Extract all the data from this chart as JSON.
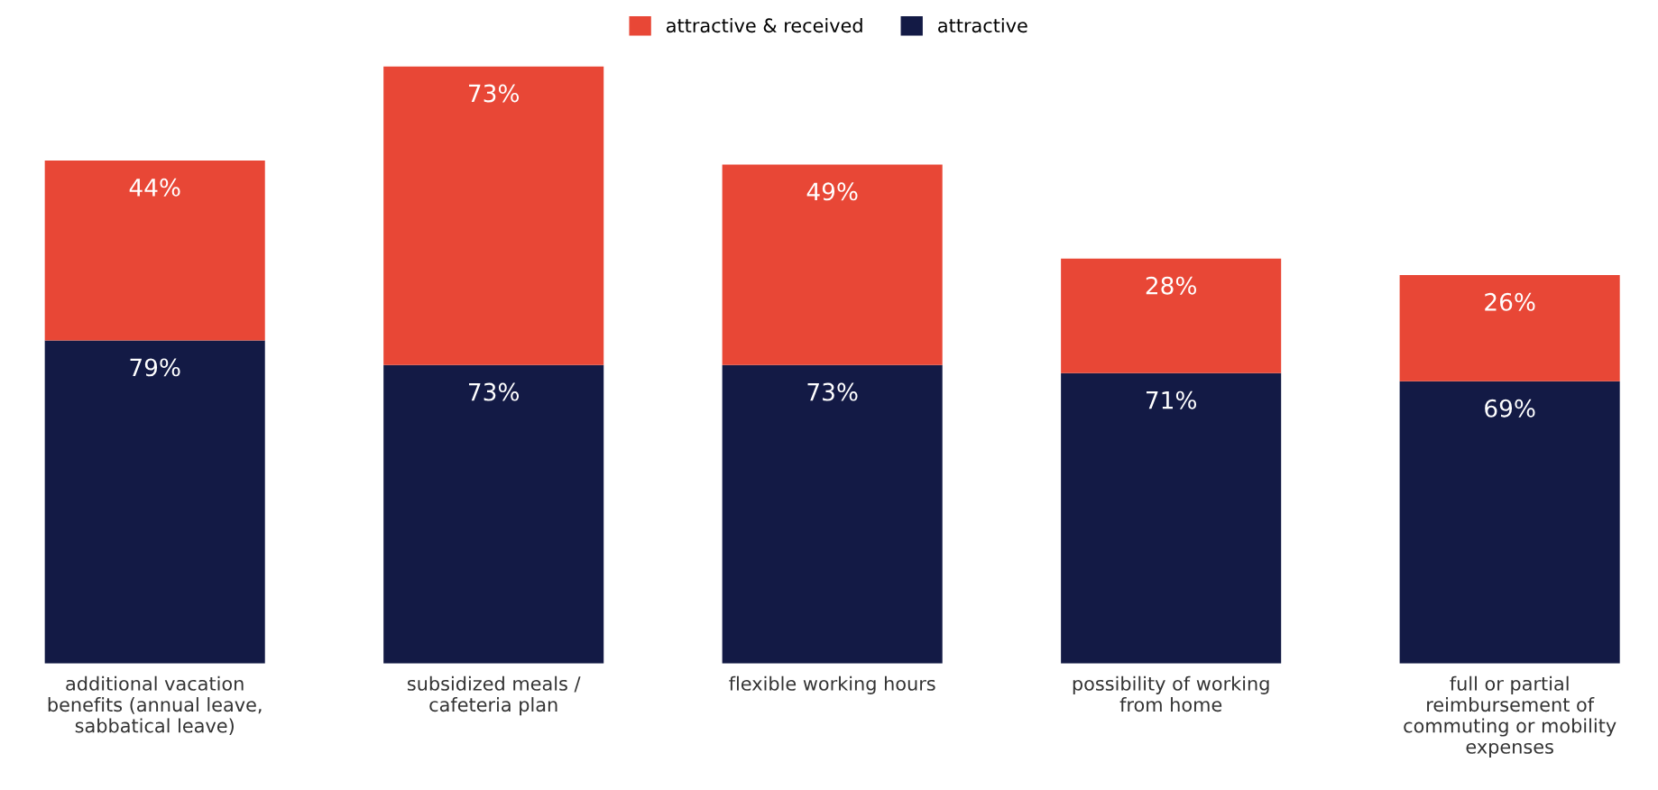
{
  "chart_data": {
    "type": "bar",
    "stacked": true,
    "legend": "top",
    "categories": [
      "additional vacation\nbenefits (annual leave,\nsabbatical leave)",
      "subsidized meals /\ncafeteria plan",
      "flexible working hours",
      "possibility of working\nfrom home",
      "full or partial\nreimbursement of\ncommuting or mobility\nexpenses"
    ],
    "series": [
      {
        "name": "attractive",
        "color": "#131a45",
        "values": [
          79,
          73,
          73,
          71,
          69
        ],
        "value_labels": [
          "79%",
          "73%",
          "73%",
          "71%",
          "69%"
        ]
      },
      {
        "name": "attractive & received",
        "color": "#e84736",
        "values": [
          44,
          73,
          49,
          28,
          26
        ],
        "value_labels": [
          "44%",
          "73%",
          "49%",
          "28%",
          "26%"
        ]
      }
    ]
  }
}
